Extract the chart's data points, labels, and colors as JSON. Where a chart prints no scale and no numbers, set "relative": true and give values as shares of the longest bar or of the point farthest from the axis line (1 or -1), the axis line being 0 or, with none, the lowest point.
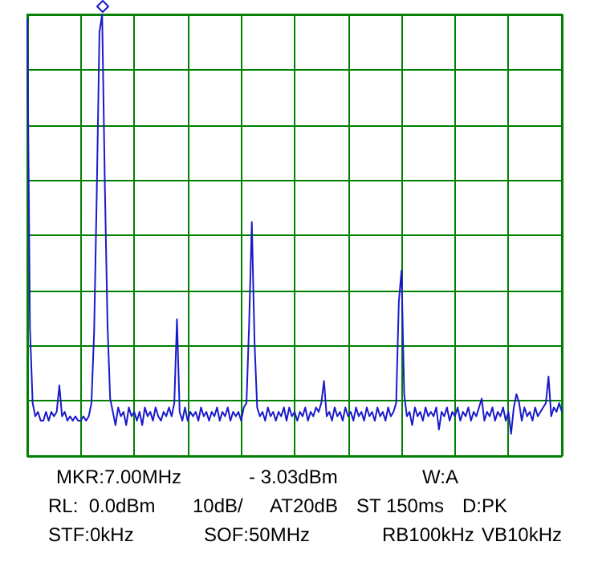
{
  "chart_data": {
    "type": "line",
    "relative": true,
    "grid": true,
    "marker": "none",
    "line_style": "solid",
    "annotations": [
      "MKR:7.00MHz",
      "- 3.03dBm",
      "W:A",
      "RL:  0.0dBm",
      "10dB/",
      "AT20dB",
      "ST 150ms",
      "D:PK",
      "STF:0kHz",
      "SOF:50MHz",
      "RB100kHz",
      "VB10kHz"
    ],
    "categories": [
      null,
      null,
      null,
      null,
      null,
      null,
      null,
      null,
      null,
      null,
      null,
      null,
      null,
      null,
      null,
      null,
      null,
      null,
      null,
      null,
      null,
      null,
      null,
      null,
      null,
      null,
      null,
      null,
      null,
      null,
      null,
      null,
      null,
      null,
      null,
      null,
      null,
      null,
      null,
      null,
      null,
      null,
      null,
      null,
      null,
      null,
      null,
      null,
      null,
      null,
      null,
      null,
      null,
      null,
      null,
      null,
      null,
      null,
      null,
      null,
      null,
      null,
      null,
      null,
      null,
      null,
      null,
      null,
      null,
      null,
      null,
      null,
      null,
      null,
      null,
      null,
      null,
      null,
      null,
      null,
      null,
      null,
      null,
      null,
      null,
      null,
      null,
      null,
      null,
      null,
      null,
      null,
      null,
      null,
      null,
      null,
      null,
      null,
      null,
      null,
      null,
      null,
      null,
      null,
      null,
      null,
      null,
      null,
      null,
      null,
      null,
      null,
      null,
      null,
      null,
      null,
      null,
      null,
      null,
      null,
      null,
      null,
      null,
      null,
      null,
      null,
      null,
      null,
      null,
      null,
      null,
      null,
      null,
      null,
      null,
      null,
      null,
      null,
      null,
      null,
      null,
      null,
      null,
      null,
      null,
      null,
      null,
      null,
      null,
      null,
      null,
      null,
      null,
      null,
      null,
      null,
      null,
      null,
      null,
      null,
      null,
      null,
      null,
      null,
      null,
      null,
      null,
      null,
      null,
      null,
      null,
      null,
      null,
      null,
      null,
      null,
      null,
      null,
      null,
      null,
      null,
      null,
      null,
      null,
      null,
      null,
      null,
      null,
      null,
      null,
      null,
      null,
      null,
      null,
      null,
      null,
      null,
      null,
      null,
      null,
      null
    ],
    "series": [
      {
        "color": "#1a1acc",
        "values": [
          0.99,
          0.29,
          0.12,
          0.09,
          0.1,
          0.08,
          0.08,
          0.1,
          0.08,
          0.1,
          0.09,
          0.1,
          0.16,
          0.09,
          0.1,
          0.08,
          0.09,
          0.08,
          0.09,
          0.08,
          0.08,
          0.09,
          0.08,
          0.09,
          0.12,
          0.28,
          0.6,
          0.96,
          1.0,
          0.62,
          0.3,
          0.13,
          0.1,
          0.07,
          0.11,
          0.09,
          0.1,
          0.07,
          0.11,
          0.09,
          0.1,
          0.08,
          0.1,
          0.07,
          0.11,
          0.09,
          0.1,
          0.08,
          0.11,
          0.09,
          0.08,
          0.1,
          0.09,
          0.11,
          0.09,
          0.12,
          0.31,
          0.1,
          0.08,
          0.11,
          0.08,
          0.1,
          0.09,
          0.1,
          0.08,
          0.11,
          0.09,
          0.1,
          0.08,
          0.1,
          0.09,
          0.11,
          0.08,
          0.1,
          0.09,
          0.11,
          0.08,
          0.1,
          0.09,
          0.1,
          0.08,
          0.11,
          0.12,
          0.3,
          0.53,
          0.26,
          0.11,
          0.09,
          0.1,
          0.08,
          0.11,
          0.09,
          0.1,
          0.08,
          0.1,
          0.09,
          0.11,
          0.08,
          0.11,
          0.09,
          0.1,
          0.08,
          0.1,
          0.09,
          0.11,
          0.08,
          0.1,
          0.09,
          0.11,
          0.1,
          0.12,
          0.17,
          0.09,
          0.1,
          0.08,
          0.11,
          0.09,
          0.1,
          0.08,
          0.11,
          0.09,
          0.1,
          0.08,
          0.11,
          0.09,
          0.1,
          0.08,
          0.11,
          0.09,
          0.1,
          0.08,
          0.11,
          0.09,
          0.1,
          0.08,
          0.11,
          0.09,
          0.1,
          0.12,
          0.35,
          0.42,
          0.14,
          0.09,
          0.1,
          0.07,
          0.11,
          0.09,
          0.1,
          0.08,
          0.11,
          0.09,
          0.1,
          0.09,
          0.11,
          0.06,
          0.1,
          0.09,
          0.11,
          0.08,
          0.1,
          0.09,
          0.11,
          0.08,
          0.1,
          0.09,
          0.11,
          0.08,
          0.1,
          0.09,
          0.11,
          0.13,
          0.08,
          0.1,
          0.09,
          0.11,
          0.08,
          0.1,
          0.09,
          0.11,
          0.08,
          0.1,
          0.05,
          0.11,
          0.14,
          0.12,
          0.08,
          0.11,
          0.09,
          0.1,
          0.08,
          0.11,
          0.09,
          0.1,
          0.11,
          0.12,
          0.18,
          0.09,
          0.11,
          0.1,
          0.12,
          0.1
        ]
      }
    ]
  }
}
